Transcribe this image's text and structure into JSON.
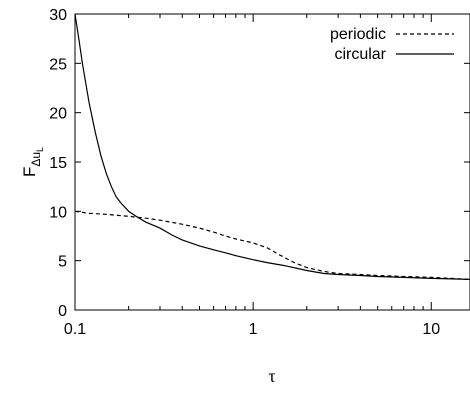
{
  "chart_data": {
    "type": "line",
    "title": "",
    "xlabel": "τ",
    "ylabel_main": "F",
    "ylabel_sub": "Δu",
    "ylabel_subsub": "L",
    "x_scale": "log",
    "xlim": [
      0.1,
      16.5
    ],
    "ylim": [
      0,
      30
    ],
    "x_ticks": [
      {
        "value": 0.1,
        "label": "0.1"
      },
      {
        "value": 1,
        "label": "1"
      },
      {
        "value": 10,
        "label": "10"
      }
    ],
    "y_ticks": [
      {
        "value": 0,
        "label": "0"
      },
      {
        "value": 5,
        "label": "5"
      },
      {
        "value": 10,
        "label": "10"
      },
      {
        "value": 15,
        "label": "15"
      },
      {
        "value": 20,
        "label": "20"
      },
      {
        "value": 25,
        "label": "25"
      },
      {
        "value": 30,
        "label": "30"
      }
    ],
    "grid": false,
    "legend_position": "top-right",
    "series": [
      {
        "name": "periodic",
        "style": "dashed",
        "color": "#000000",
        "x": [
          0.1,
          0.12,
          0.15,
          0.2,
          0.25,
          0.3,
          0.4,
          0.5,
          0.6,
          0.7,
          0.8,
          1.0,
          1.2,
          1.4,
          1.7,
          2.0,
          2.5,
          3.0,
          4.0,
          5.0,
          7.0,
          10.0,
          13.0,
          16.5
        ],
        "y": [
          10.0,
          9.8,
          9.7,
          9.5,
          9.3,
          9.1,
          8.7,
          8.3,
          7.9,
          7.5,
          7.2,
          6.8,
          6.3,
          5.6,
          4.8,
          4.3,
          3.9,
          3.7,
          3.6,
          3.5,
          3.4,
          3.3,
          3.2,
          3.1
        ]
      },
      {
        "name": "circular",
        "style": "solid",
        "color": "#000000",
        "x": [
          0.1,
          0.105,
          0.11,
          0.12,
          0.13,
          0.14,
          0.15,
          0.16,
          0.17,
          0.18,
          0.2,
          0.22,
          0.25,
          0.3,
          0.35,
          0.4,
          0.5,
          0.6,
          0.7,
          0.8,
          1.0,
          1.2,
          1.5,
          2.0,
          2.5,
          3.0,
          4.0,
          5.0,
          7.0,
          10.0,
          13.0,
          16.5
        ],
        "y": [
          30.0,
          27.5,
          25.0,
          21.0,
          18.0,
          15.6,
          13.8,
          12.5,
          11.5,
          10.9,
          10.0,
          9.5,
          8.9,
          8.3,
          7.6,
          7.1,
          6.5,
          6.1,
          5.8,
          5.5,
          5.1,
          4.8,
          4.5,
          4.0,
          3.7,
          3.6,
          3.5,
          3.4,
          3.3,
          3.2,
          3.15,
          3.1
        ]
      }
    ]
  }
}
